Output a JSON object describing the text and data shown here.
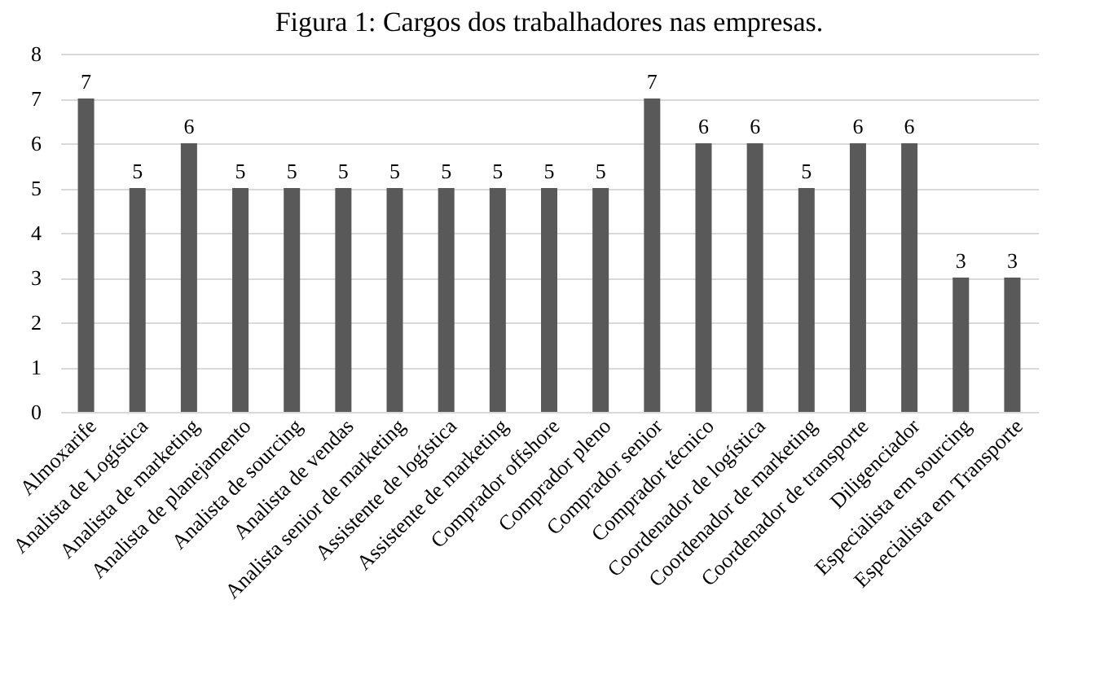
{
  "chart_data": {
    "type": "bar",
    "title": "Figura 1: Cargos dos trabalhadores nas empresas.",
    "categories": [
      "Almoxarife",
      "Analista de Logística",
      "Analista de marketing",
      "Analista de planejamento",
      "Analista de sourcing",
      "Analista de vendas",
      "Analista senior de marketing",
      "Assistente de logística",
      "Assistente de marketing",
      "Comprador offshore",
      "Comprador pleno",
      "Comprador senior",
      "Comprador técnico",
      "Coordenador de logística",
      "Coordenador de marketing",
      "Coordenador de transporte",
      "Diligenciador",
      "Especialista em sourcing",
      "Especialista em Transporte"
    ],
    "values": [
      7,
      5,
      6,
      5,
      5,
      5,
      5,
      5,
      5,
      5,
      5,
      7,
      6,
      6,
      5,
      6,
      6,
      3,
      3
    ],
    "color": "#595959",
    "ylim": [
      0,
      8
    ],
    "yticks": [
      0,
      1,
      2,
      3,
      4,
      5,
      6,
      7,
      8
    ],
    "grid": "y",
    "data_labels": true
  }
}
